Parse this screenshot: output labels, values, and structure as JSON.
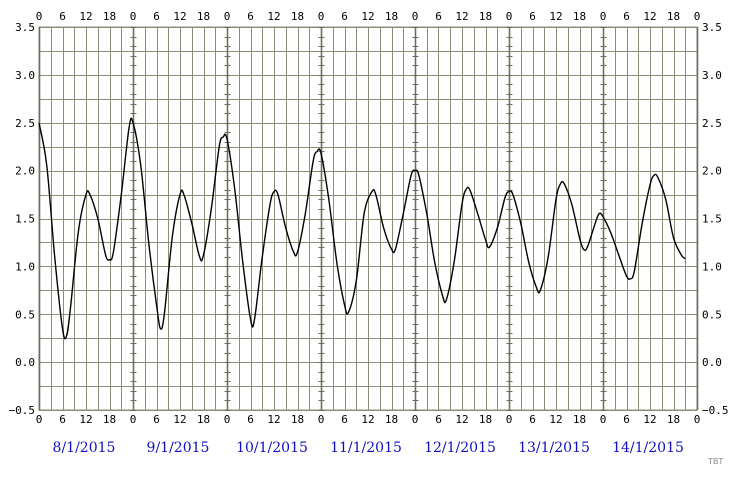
{
  "chart_data": {
    "type": "line",
    "title": "",
    "xlabel": "",
    "ylabel": "",
    "ylim": [
      -0.5,
      3.5
    ],
    "y_ticks": [
      "3.5",
      "3.0",
      "2.5",
      "2.0",
      "1.5",
      "1.0",
      "0.5",
      "0.0",
      "−0.5"
    ],
    "y_tick_values": [
      3.5,
      3.0,
      2.5,
      2.0,
      1.5,
      1.0,
      0.5,
      0.0,
      -0.5
    ],
    "hour_ticks": [
      "0",
      "6",
      "12",
      "18"
    ],
    "hour_ticks_last": "0",
    "day_labels": [
      "8/1/2015",
      "9/1/2015",
      "10/1/2015",
      "11/1/2015",
      "12/1/2015",
      "13/1/2015",
      "14/1/2015"
    ],
    "grid": true,
    "line_color": "#000000",
    "grid_color": "#8c8c78",
    "date_color": "#1010c0",
    "x_unit": "hours since 8/1/2015 00:00",
    "series": [
      {
        "points": [
          [
            0,
            2.5
          ],
          [
            2,
            2.05
          ],
          [
            4,
            1.1
          ],
          [
            6,
            0.35
          ],
          [
            7,
            0.27
          ],
          [
            8,
            0.55
          ],
          [
            10,
            1.35
          ],
          [
            12,
            1.75
          ],
          [
            13,
            1.75
          ],
          [
            15,
            1.5
          ],
          [
            17,
            1.12
          ],
          [
            18,
            1.07
          ],
          [
            19,
            1.15
          ],
          [
            21,
            1.75
          ],
          [
            23,
            2.45
          ],
          [
            24,
            2.5
          ],
          [
            26,
            2.05
          ],
          [
            28,
            1.25
          ],
          [
            30,
            0.6
          ],
          [
            31,
            0.35
          ],
          [
            32,
            0.5
          ],
          [
            34,
            1.3
          ],
          [
            36,
            1.75
          ],
          [
            37,
            1.75
          ],
          [
            39,
            1.45
          ],
          [
            41,
            1.1
          ],
          [
            42,
            1.12
          ],
          [
            44,
            1.6
          ],
          [
            46,
            2.25
          ],
          [
            47,
            2.35
          ],
          [
            48,
            2.33
          ],
          [
            50,
            1.8
          ],
          [
            52,
            1.05
          ],
          [
            54,
            0.45
          ],
          [
            55,
            0.44
          ],
          [
            57,
            1.1
          ],
          [
            59,
            1.65
          ],
          [
            60,
            1.78
          ],
          [
            61,
            1.75
          ],
          [
            63,
            1.4
          ],
          [
            65,
            1.15
          ],
          [
            66,
            1.15
          ],
          [
            68,
            1.55
          ],
          [
            70,
            2.1
          ],
          [
            71,
            2.2
          ],
          [
            72,
            2.18
          ],
          [
            74,
            1.7
          ],
          [
            76,
            1.05
          ],
          [
            78,
            0.6
          ],
          [
            79,
            0.52
          ],
          [
            81,
            0.85
          ],
          [
            83,
            1.55
          ],
          [
            85,
            1.78
          ],
          [
            86,
            1.75
          ],
          [
            88,
            1.4
          ],
          [
            90,
            1.18
          ],
          [
            91,
            1.18
          ],
          [
            93,
            1.55
          ],
          [
            95,
            1.95
          ],
          [
            96,
            2.0
          ],
          [
            97,
            1.95
          ],
          [
            99,
            1.55
          ],
          [
            101,
            1.05
          ],
          [
            103,
            0.7
          ],
          [
            104,
            0.65
          ],
          [
            106,
            1.05
          ],
          [
            108,
            1.65
          ],
          [
            109,
            1.8
          ],
          [
            110,
            1.8
          ],
          [
            112,
            1.55
          ],
          [
            114,
            1.28
          ],
          [
            115,
            1.2
          ],
          [
            117,
            1.4
          ],
          [
            119,
            1.72
          ],
          [
            120,
            1.78
          ],
          [
            121,
            1.75
          ],
          [
            123,
            1.45
          ],
          [
            125,
            1.05
          ],
          [
            127,
            0.78
          ],
          [
            128,
            0.75
          ],
          [
            130,
            1.1
          ],
          [
            132,
            1.7
          ],
          [
            133,
            1.85
          ],
          [
            134,
            1.87
          ],
          [
            136,
            1.65
          ],
          [
            138,
            1.3
          ],
          [
            139,
            1.18
          ],
          [
            140,
            1.2
          ],
          [
            142,
            1.45
          ],
          [
            143,
            1.55
          ],
          [
            144,
            1.52
          ],
          [
            146,
            1.35
          ],
          [
            148,
            1.12
          ],
          [
            150,
            0.9
          ],
          [
            151,
            0.87
          ],
          [
            152,
            0.95
          ],
          [
            154,
            1.45
          ],
          [
            156,
            1.85
          ],
          [
            157,
            1.95
          ],
          [
            158,
            1.93
          ],
          [
            160,
            1.7
          ],
          [
            162,
            1.3
          ],
          [
            164,
            1.12
          ],
          [
            165,
            1.08
          ]
        ]
      }
    ]
  },
  "signature": "TBT"
}
